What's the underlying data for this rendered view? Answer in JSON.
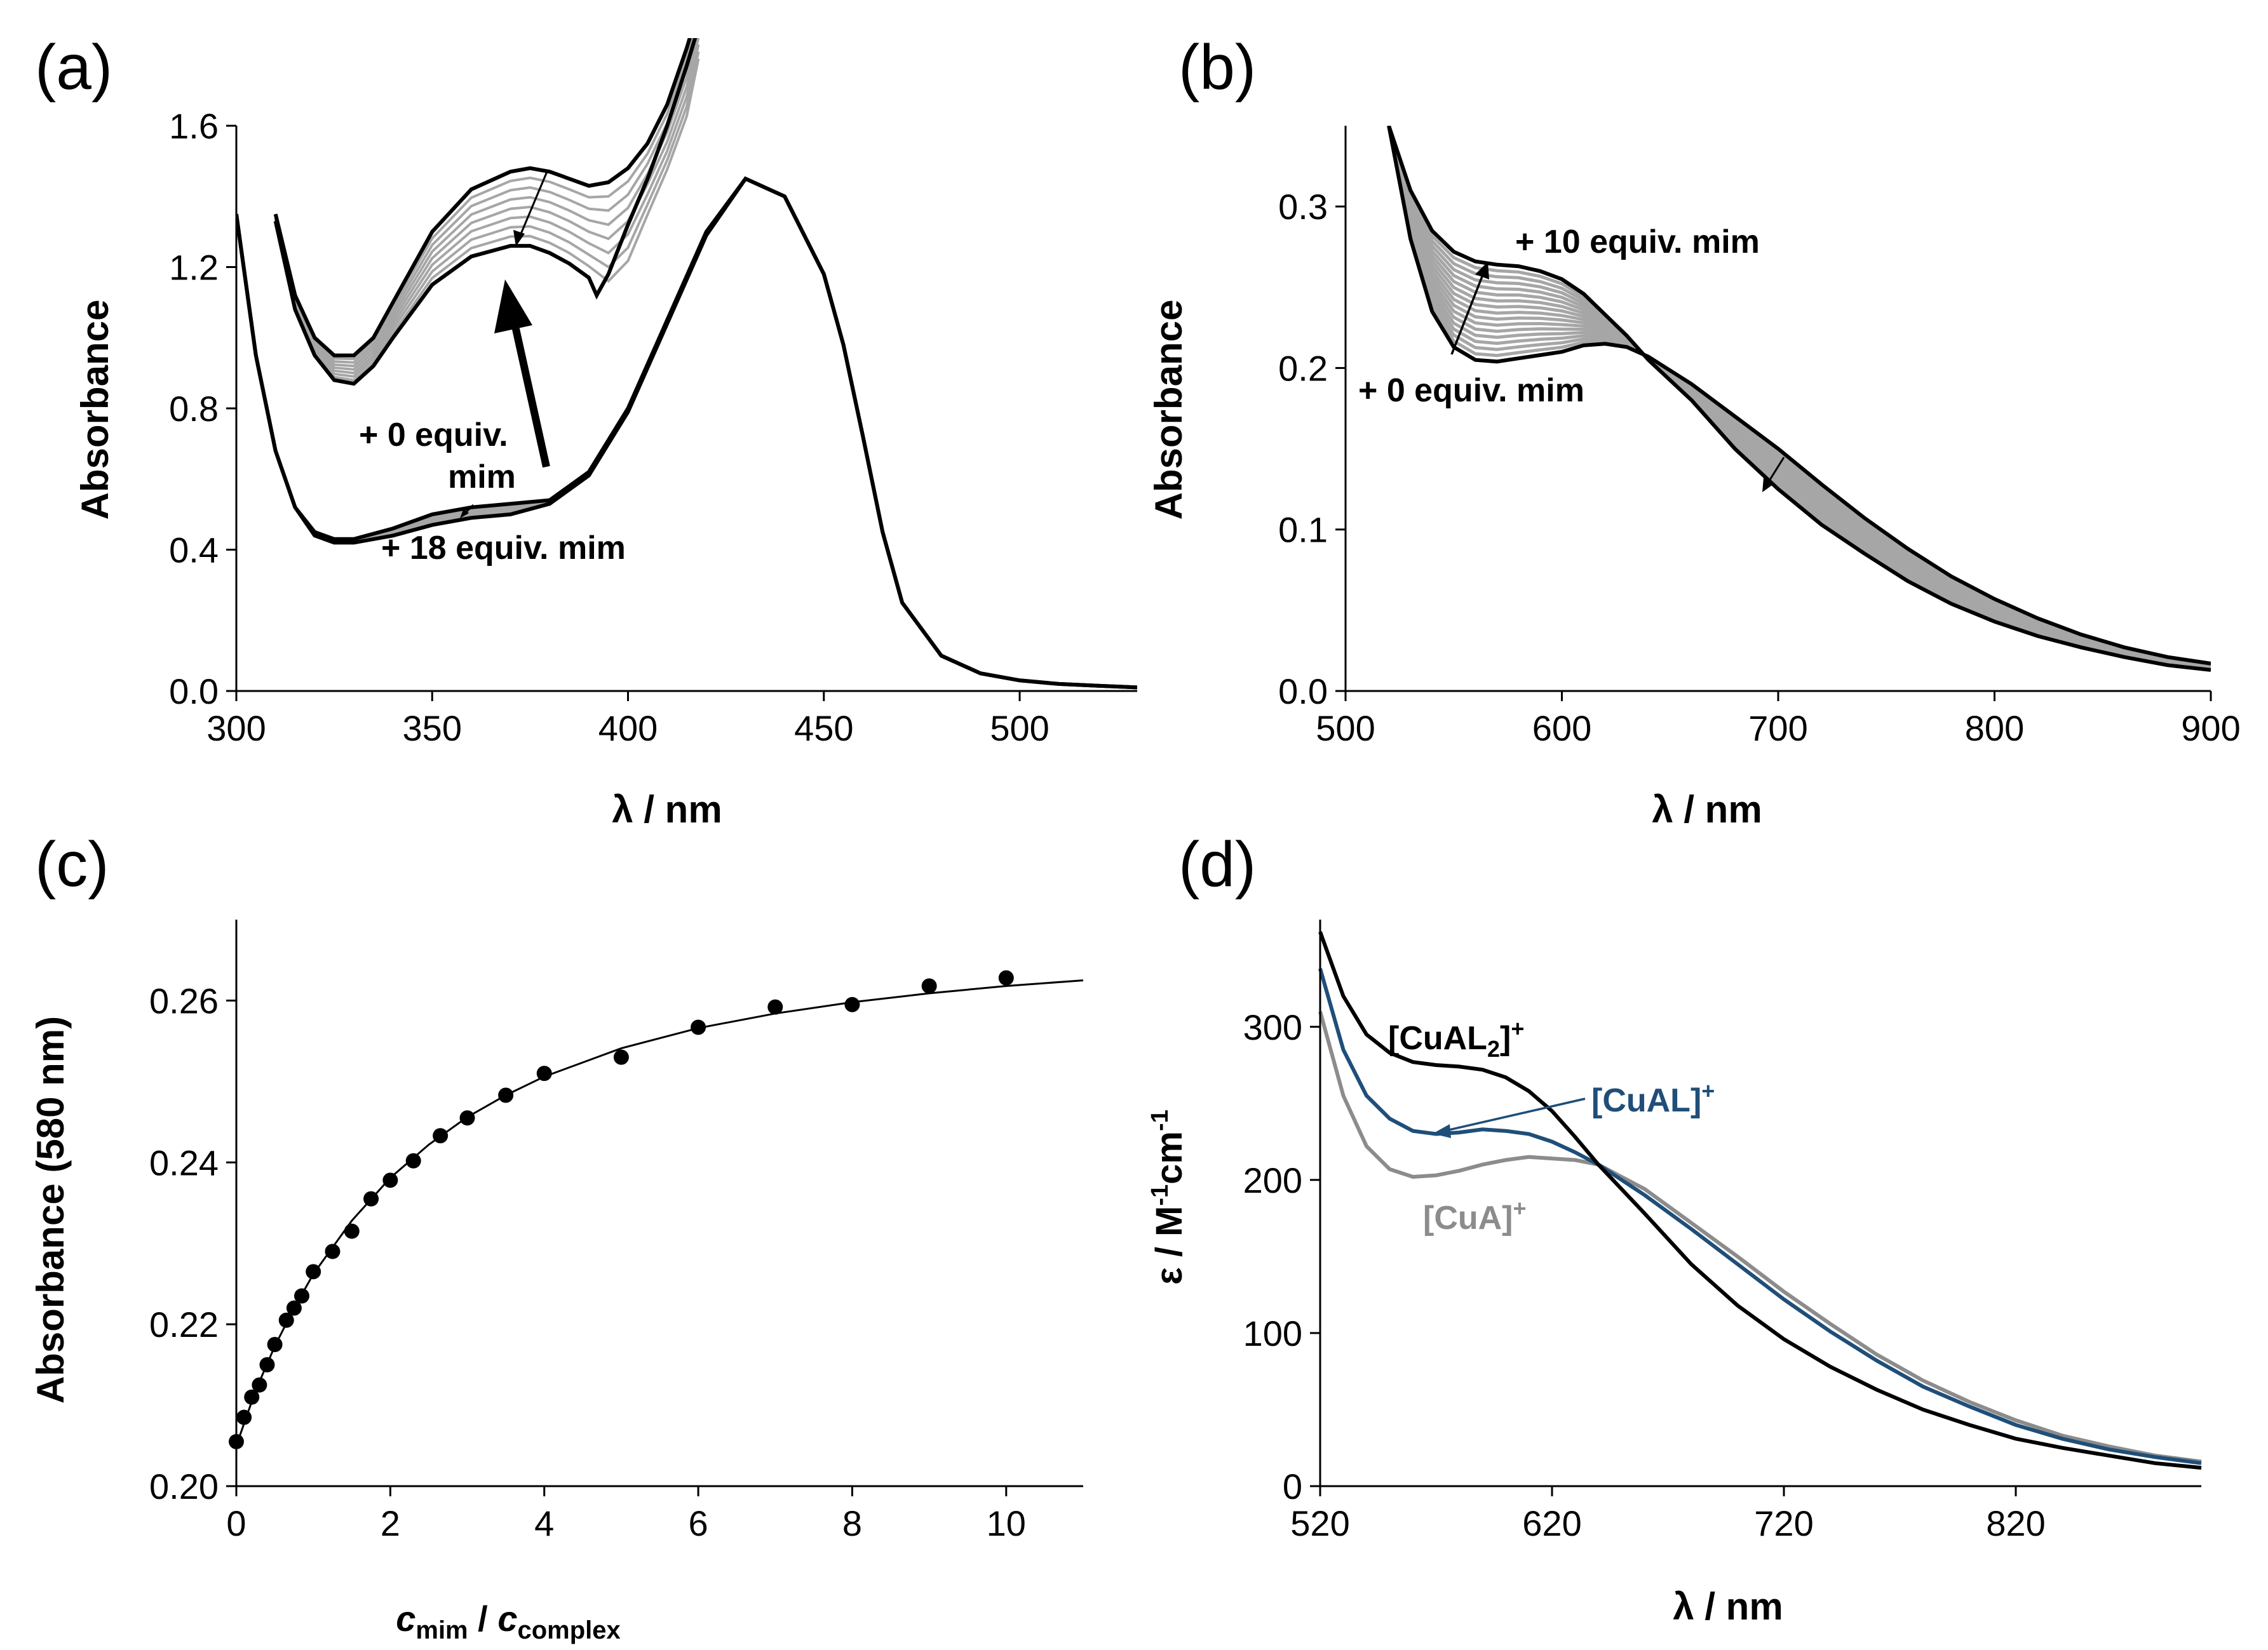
{
  "chart_data": [
    {
      "id": "a",
      "type": "line",
      "panel_label": "(a)",
      "xlabel": "λ / nm",
      "ylabel": "Absorbance",
      "xlim": [
        300,
        530
      ],
      "ylim": [
        0.0,
        1.6
      ],
      "xticks": [
        300,
        350,
        400,
        450,
        500
      ],
      "yticks": [
        "0.0",
        "0.4",
        "0.8",
        "1.2",
        "1.6"
      ],
      "colors": {
        "extreme": "#000000",
        "intermediate": "#a6a6a6"
      },
      "main_series": [
        {
          "name": "+ 0 equiv. mim",
          "x": [
            300,
            305,
            310,
            315,
            320,
            325,
            330,
            340,
            350,
            360,
            370,
            380,
            390,
            400,
            410,
            420,
            430,
            440,
            450,
            455,
            460,
            465,
            470,
            480,
            490,
            500,
            510,
            520,
            530
          ],
          "y": [
            1.35,
            0.95,
            0.68,
            0.52,
            0.45,
            0.43,
            0.43,
            0.46,
            0.5,
            0.52,
            0.53,
            0.54,
            0.62,
            0.8,
            1.05,
            1.3,
            1.45,
            1.4,
            1.18,
            0.98,
            0.72,
            0.45,
            0.25,
            0.1,
            0.05,
            0.03,
            0.02,
            0.015,
            0.01
          ]
        },
        {
          "name": "+ 18 equiv. mim",
          "x": [
            300,
            305,
            310,
            315,
            320,
            325,
            330,
            340,
            350,
            360,
            370,
            380,
            390,
            400,
            410,
            420,
            430,
            440,
            450,
            455,
            460,
            465,
            470,
            480,
            490,
            500,
            510,
            520,
            530
          ],
          "y": [
            1.35,
            0.95,
            0.68,
            0.52,
            0.44,
            0.42,
            0.42,
            0.44,
            0.47,
            0.49,
            0.5,
            0.53,
            0.61,
            0.79,
            1.04,
            1.29,
            1.45,
            1.4,
            1.18,
            0.98,
            0.72,
            0.45,
            0.25,
            0.1,
            0.05,
            0.03,
            0.02,
            0.015,
            0.01
          ]
        }
      ],
      "inset_series": [
        {
          "name": "+ 0 equiv. mim",
          "x": [
            310,
            315,
            320,
            325,
            330,
            335,
            340,
            350,
            360,
            370,
            375,
            380,
            385,
            390,
            395,
            400,
            405,
            410,
            415,
            418
          ],
          "y": [
            1.35,
            1.12,
            1.0,
            0.95,
            0.95,
            1.0,
            1.1,
            1.3,
            1.42,
            1.47,
            1.48,
            1.47,
            1.45,
            1.43,
            1.44,
            1.48,
            1.55,
            1.66,
            1.82,
            1.93
          ]
        },
        {
          "name": "+ 18 equiv. mim",
          "x": [
            310,
            315,
            320,
            325,
            330,
            335,
            340,
            350,
            360,
            370,
            375,
            380,
            385,
            390,
            392,
            395,
            400,
            405,
            410,
            415,
            418
          ],
          "y": [
            1.33,
            1.08,
            0.95,
            0.88,
            0.87,
            0.92,
            1.0,
            1.15,
            1.23,
            1.26,
            1.26,
            1.24,
            1.21,
            1.17,
            1.12,
            1.18,
            1.32,
            1.45,
            1.6,
            1.77,
            1.88
          ]
        }
      ],
      "annotations": [
        {
          "text": "+ 0 equiv.",
          "x": 368,
          "y": 0.68
        },
        {
          "text": "mim",
          "x": 363,
          "y": 0.59
        },
        {
          "text": "+ 18 equiv. mim",
          "x": 388,
          "y": 0.38
        }
      ]
    },
    {
      "id": "b",
      "type": "line",
      "panel_label": "(b)",
      "xlabel": "λ / nm",
      "ylabel": "Absorbance",
      "xlim": [
        500,
        900
      ],
      "ylim": [
        0.0,
        0.35
      ],
      "xticks": [
        500,
        600,
        700,
        800,
        900
      ],
      "yticks": [
        "0.0",
        "0.1",
        "0.2",
        "0.3"
      ],
      "colors": {
        "extreme": "#000000",
        "intermediate": "#a6a6a6"
      },
      "series": [
        {
          "name": "+ 0 equiv. mim",
          "x": [
            520,
            530,
            540,
            550,
            560,
            570,
            580,
            590,
            600,
            610,
            620,
            630,
            640,
            660,
            680,
            700,
            720,
            740,
            760,
            780,
            800,
            820,
            840,
            860,
            880,
            900
          ],
          "y": [
            0.35,
            0.28,
            0.235,
            0.213,
            0.205,
            0.204,
            0.206,
            0.208,
            0.21,
            0.214,
            0.215,
            0.213,
            0.207,
            0.19,
            0.17,
            0.15,
            0.128,
            0.107,
            0.088,
            0.071,
            0.057,
            0.045,
            0.035,
            0.027,
            0.021,
            0.017
          ]
        },
        {
          "name": "+ 10 equiv. mim",
          "x": [
            520,
            530,
            540,
            550,
            560,
            570,
            580,
            590,
            600,
            610,
            620,
            630,
            640,
            660,
            680,
            700,
            720,
            740,
            760,
            780,
            800,
            820,
            840,
            860,
            880,
            900
          ],
          "y": [
            0.35,
            0.31,
            0.285,
            0.272,
            0.266,
            0.264,
            0.263,
            0.26,
            0.255,
            0.246,
            0.233,
            0.22,
            0.205,
            0.18,
            0.15,
            0.125,
            0.103,
            0.085,
            0.068,
            0.054,
            0.043,
            0.034,
            0.027,
            0.021,
            0.016,
            0.013
          ]
        }
      ],
      "annotations": [
        {
          "text": "+ 10 equiv. mim",
          "x": 590,
          "y": 0.278
        },
        {
          "text": "+ 0 equiv. mim",
          "x": 524,
          "y": 0.183
        }
      ]
    },
    {
      "id": "c",
      "type": "scatter",
      "panel_label": "(c)",
      "xlabel_parts": {
        "c1": "c",
        "sub1": "mim",
        "sep": " / ",
        "c2": "c",
        "sub2": "complex"
      },
      "ylabel": "Absorbance (580 nm)",
      "xlim": [
        0,
        11
      ],
      "ylim": [
        0.2,
        0.27
      ],
      "xticks": [
        0,
        2,
        4,
        6,
        8,
        10
      ],
      "yticks": [
        "0.20",
        "0.22",
        "0.24",
        "0.26"
      ],
      "points": {
        "x": [
          0,
          0.1,
          0.2,
          0.3,
          0.4,
          0.5,
          0.65,
          0.75,
          0.85,
          1.0,
          1.25,
          1.5,
          1.75,
          2.0,
          2.3,
          2.65,
          3.0,
          3.5,
          4.0,
          5.0,
          6.0,
          7.0,
          8.0,
          9.0,
          10.0
        ],
        "y": [
          0.2055,
          0.2085,
          0.211,
          0.2125,
          0.215,
          0.2175,
          0.2205,
          0.222,
          0.2235,
          0.2265,
          0.229,
          0.2315,
          0.2355,
          0.2378,
          0.2402,
          0.2433,
          0.2455,
          0.2483,
          0.251,
          0.253,
          0.2567,
          0.2592,
          0.2595,
          0.2618,
          0.2628
        ]
      },
      "fit": {
        "x": [
          0,
          0.25,
          0.5,
          0.75,
          1,
          1.5,
          2,
          2.5,
          3,
          3.5,
          4,
          5,
          6,
          7,
          8,
          9,
          10,
          11
        ],
        "y": [
          0.205,
          0.2118,
          0.2173,
          0.222,
          0.2262,
          0.2328,
          0.2381,
          0.2422,
          0.2456,
          0.2483,
          0.2506,
          0.2541,
          0.2566,
          0.2584,
          0.2598,
          0.2609,
          0.2618,
          0.2625
        ]
      }
    },
    {
      "id": "d",
      "type": "line",
      "panel_label": "(d)",
      "xlabel": "λ / nm",
      "ylabel_parts": {
        "main": "ε / M",
        "sup1": "-1",
        "mid": "cm",
        "sup2": "-1"
      },
      "xlim": [
        520,
        900
      ],
      "ylim": [
        0,
        370
      ],
      "xticks": [
        520,
        620,
        720,
        820
      ],
      "yticks": [
        "0",
        "100",
        "200",
        "300"
      ],
      "series": [
        {
          "name": "[CuAL2]+",
          "label_main": "[CuAL",
          "label_sub": "2",
          "label_tail": "]",
          "label_sup": "+",
          "color": "#000000",
          "x": [
            520,
            530,
            540,
            550,
            560,
            570,
            580,
            590,
            600,
            610,
            620,
            630,
            640,
            660,
            680,
            700,
            720,
            740,
            760,
            780,
            800,
            820,
            840,
            860,
            880,
            900
          ],
          "y": [
            362,
            320,
            295,
            283,
            277,
            275,
            274,
            272,
            267,
            258,
            245,
            228,
            210,
            178,
            145,
            118,
            96,
            78,
            63,
            50,
            40,
            31,
            25,
            20,
            15,
            12
          ]
        },
        {
          "name": "[CuAL]+",
          "label_main": "[CuAL]",
          "label_sup": "+",
          "color": "#1f4e79",
          "x": [
            520,
            530,
            540,
            550,
            560,
            570,
            580,
            590,
            600,
            610,
            620,
            630,
            640,
            660,
            680,
            700,
            720,
            740,
            760,
            780,
            800,
            820,
            840,
            860,
            880,
            900
          ],
          "y": [
            338,
            285,
            255,
            240,
            232,
            230,
            231,
            233,
            232,
            230,
            225,
            218,
            210,
            190,
            168,
            145,
            122,
            101,
            82,
            65,
            52,
            40,
            31,
            24,
            19,
            15
          ]
        },
        {
          "name": "[CuA]+",
          "label_main": "[CuA]",
          "label_sup": "+",
          "color": "#8c8c8c",
          "x": [
            520,
            530,
            540,
            550,
            560,
            570,
            580,
            590,
            600,
            610,
            620,
            630,
            640,
            660,
            680,
            700,
            720,
            740,
            760,
            780,
            800,
            820,
            840,
            860,
            880,
            900
          ],
          "y": [
            310,
            255,
            222,
            207,
            202,
            203,
            206,
            210,
            213,
            215,
            214,
            213,
            210,
            194,
            172,
            150,
            127,
            106,
            86,
            69,
            55,
            43,
            33,
            26,
            20,
            16
          ]
        }
      ]
    }
  ]
}
